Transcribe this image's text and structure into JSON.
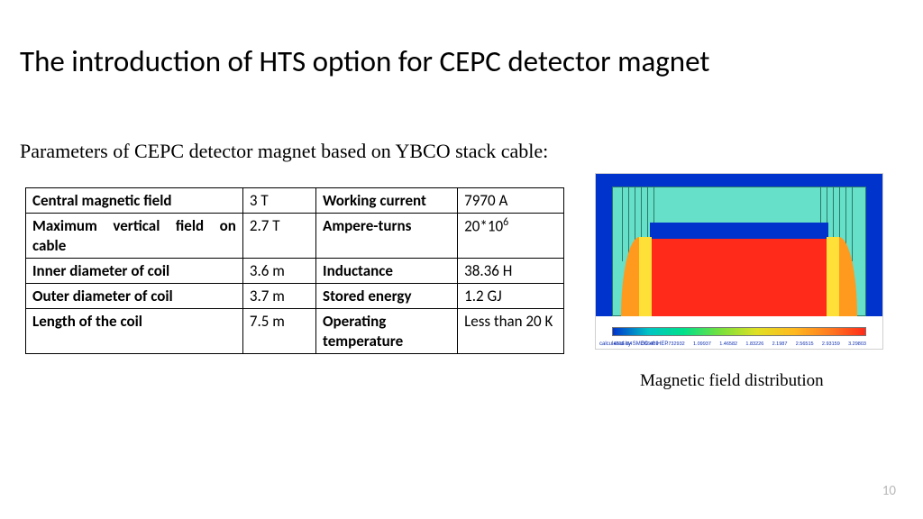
{
  "title": "The introduction of HTS option for CEPC detector magnet",
  "subtitle": "Parameters of CEPC detector magnet based on YBCO stack cable:",
  "page_number": "10",
  "table": {
    "rows": [
      {
        "l1": "Central magnetic field",
        "v1": "3 T",
        "l2": "Working current",
        "v2": "7970 A"
      },
      {
        "l1": "Maximum vertical field on cable",
        "v1": "2.7 T",
        "l2": "Ampere-turns",
        "v2": "20*10⁶",
        "v2_html": "20*10<sup>6</sup>"
      },
      {
        "l1": "Inner diameter of coil",
        "v1": "3.6 m",
        "l2": "Inductance",
        "v2": "38.36 H"
      },
      {
        "l1": "Outer diameter of coil",
        "v1": "3.7 m",
        "l2": "Stored energy",
        "v2": "1.2 GJ"
      },
      {
        "l1": "Length of the coil",
        "v1": "7.5 m",
        "l2": "Operating temperature",
        "v2": "Less than 20 K"
      }
    ]
  },
  "figure": {
    "caption": "Magnetic field distribution",
    "credit": "calculated by SMEC of IHEP",
    "colorbar": {
      "colors": [
        "#0033cc",
        "#00c4c4",
        "#00e08a",
        "#7be03a",
        "#e0e024",
        "#ffb81f",
        "#ff7a1f",
        "#ff2a1a"
      ],
      "tick_labels": [
        ".461E-04",
        ".366489",
        ".732932",
        "1.09937",
        "1.46582",
        "1.83226",
        "2.1987",
        "2.56515",
        "2.93159",
        "3.29803"
      ]
    },
    "region_colors": {
      "background": "#0033cc",
      "yoke": "#66e0c8",
      "bore": "#ff2a1a",
      "lobe_outer": "#ff9a1f",
      "lobe_inner": "#ffe038",
      "mid_bar": "#0033cc"
    }
  }
}
